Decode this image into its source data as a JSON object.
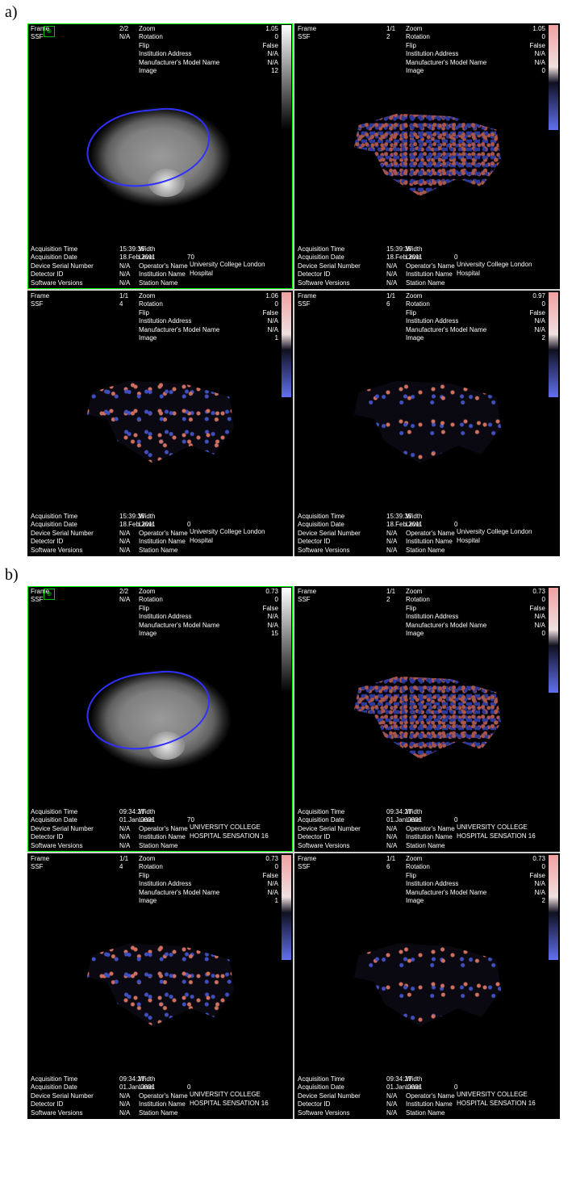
{
  "figures": {
    "a": {
      "label": "a)",
      "panels": [
        {
          "active": true,
          "image_type": "ct",
          "colorbar": "gray",
          "top": {
            "frame_lbl": "Frame",
            "frame": "2/2",
            "ssf_lbl": "SSF",
            "ssf": "N/A",
            "zoom_lbl": "Zoom",
            "zoom": "1.05",
            "rotation_lbl": "Rotation",
            "rotation": "0",
            "flip_lbl": "Flip",
            "flip": "False",
            "inst_addr_lbl": "Institution Address",
            "inst_addr": "N/A",
            "model_lbl": "Manufacturer's Model Name",
            "model": "N/A",
            "image_lbl": "Image",
            "image": "12"
          },
          "bot": {
            "acqtime_lbl": "Acquisition Time",
            "acqtime": "15:39:35",
            "acqdate_lbl": "Acquisition Date",
            "acqdate": "18.Feb.2011",
            "dsn_lbl": "Device Serial Number",
            "dsn": "N/A",
            "detid_lbl": "Detector ID",
            "detid": "N/A",
            "swv_lbl": "Software Versions",
            "swv": "N/A",
            "width_lbl": "Width",
            "level_lbl": "Level",
            "level": "70",
            "op_lbl": "Operator's Name",
            "instn_lbl": "Institution Name",
            "stn_lbl": "Station Name",
            "inst": "University College London Hospital"
          }
        },
        {
          "active": false,
          "image_type": "fine",
          "colorbar": "rb",
          "top": {
            "frame_lbl": "Frame",
            "frame": "1/1",
            "ssf_lbl": "SSF",
            "ssf": "2",
            "zoom_lbl": "Zoom",
            "zoom": "1.05",
            "rotation_lbl": "Rotation",
            "rotation": "0",
            "flip_lbl": "Flip",
            "flip": "False",
            "inst_addr_lbl": "Institution Address",
            "inst_addr": "N/A",
            "model_lbl": "Manufacturer's Model Name",
            "model": "N/A",
            "image_lbl": "Image",
            "image": "0"
          },
          "bot": {
            "acqtime_lbl": "Acquisition Time",
            "acqtime": "15:39:35",
            "acqdate_lbl": "Acquisition Date",
            "acqdate": "18.Feb.2011",
            "dsn_lbl": "Device Serial Number",
            "dsn": "N/A",
            "detid_lbl": "Detector ID",
            "detid": "N/A",
            "swv_lbl": "Software Versions",
            "swv": "N/A",
            "width_lbl": "Width",
            "level_lbl": "Level",
            "level": "0",
            "op_lbl": "Operator's Name",
            "instn_lbl": "Institution Name",
            "stn_lbl": "Station Name",
            "inst": "University College London Hospital"
          }
        },
        {
          "active": false,
          "image_type": "medium",
          "colorbar": "rb",
          "top": {
            "frame_lbl": "Frame",
            "frame": "1/1",
            "ssf_lbl": "SSF",
            "ssf": "4",
            "zoom_lbl": "Zoom",
            "zoom": "1.06",
            "rotation_lbl": "Rotation",
            "rotation": "0",
            "flip_lbl": "Flip",
            "flip": "False",
            "inst_addr_lbl": "Institution Address",
            "inst_addr": "N/A",
            "model_lbl": "Manufacturer's Model Name",
            "model": "N/A",
            "image_lbl": "Image",
            "image": "1"
          },
          "bot": {
            "acqtime_lbl": "Acquisition Time",
            "acqtime": "15:39:35",
            "acqdate_lbl": "Acquisition Date",
            "acqdate": "18.Feb.2011",
            "dsn_lbl": "Device Serial Number",
            "dsn": "N/A",
            "detid_lbl": "Detector ID",
            "detid": "N/A",
            "swv_lbl": "Software Versions",
            "swv": "N/A",
            "width_lbl": "Width",
            "level_lbl": "Level",
            "level": "0",
            "op_lbl": "Operator's Name",
            "instn_lbl": "Institution Name",
            "stn_lbl": "Station Name",
            "inst": "University College London Hospital"
          }
        },
        {
          "active": false,
          "image_type": "coarse",
          "colorbar": "rb",
          "top": {
            "frame_lbl": "Frame",
            "frame": "1/1",
            "ssf_lbl": "SSF",
            "ssf": "6",
            "zoom_lbl": "Zoom",
            "zoom": "0.97",
            "rotation_lbl": "Rotation",
            "rotation": "0",
            "flip_lbl": "Flip",
            "flip": "False",
            "inst_addr_lbl": "Institution Address",
            "inst_addr": "N/A",
            "model_lbl": "Manufacturer's Model Name",
            "model": "N/A",
            "image_lbl": "Image",
            "image": "2"
          },
          "bot": {
            "acqtime_lbl": "Acquisition Time",
            "acqtime": "15:39:35",
            "acqdate_lbl": "Acquisition Date",
            "acqdate": "18.Feb.2011",
            "dsn_lbl": "Device Serial Number",
            "dsn": "N/A",
            "detid_lbl": "Detector ID",
            "detid": "N/A",
            "swv_lbl": "Software Versions",
            "swv": "N/A",
            "width_lbl": "Width",
            "level_lbl": "Level",
            "level": "0",
            "op_lbl": "Operator's Name",
            "instn_lbl": "Institution Name",
            "stn_lbl": "Station Name",
            "inst": "University College London Hospital"
          }
        }
      ]
    },
    "b": {
      "label": "b)",
      "panels": [
        {
          "active": true,
          "image_type": "ct",
          "colorbar": "gray",
          "top": {
            "frame_lbl": "Frame",
            "frame": "2/2",
            "ssf_lbl": "SSF",
            "ssf": "N/A",
            "zoom_lbl": "Zoom",
            "zoom": "0.73",
            "rotation_lbl": "Rotation",
            "rotation": "0",
            "flip_lbl": "Flip",
            "flip": "False",
            "inst_addr_lbl": "Institution Address",
            "inst_addr": "N/A",
            "model_lbl": "Manufacturer's Model Name",
            "model": "N/A",
            "image_lbl": "Image",
            "image": "15"
          },
          "bot": {
            "acqtime_lbl": "Acquisition Time",
            "acqtime": "09:34:27",
            "acqdate_lbl": "Acquisition Date",
            "acqdate": "01.Jan.0001",
            "dsn_lbl": "Device Serial Number",
            "dsn": "N/A",
            "detid_lbl": "Detector ID",
            "detid": "N/A",
            "swv_lbl": "Software Versions",
            "swv": "N/A",
            "width_lbl": "Width",
            "level_lbl": "Level",
            "level": "70",
            "op_lbl": "Operator's Name",
            "instn_lbl": "Institution Name",
            "stn_lbl": "Station Name",
            "inst": "UNIVERSITY COLLEGE HOSPITAL SENSATION 16"
          }
        },
        {
          "active": false,
          "image_type": "fine",
          "colorbar": "rb",
          "top": {
            "frame_lbl": "Frame",
            "frame": "1/1",
            "ssf_lbl": "SSF",
            "ssf": "2",
            "zoom_lbl": "Zoom",
            "zoom": "0.73",
            "rotation_lbl": "Rotation",
            "rotation": "0",
            "flip_lbl": "Flip",
            "flip": "False",
            "inst_addr_lbl": "Institution Address",
            "inst_addr": "N/A",
            "model_lbl": "Manufacturer's Model Name",
            "model": "N/A",
            "image_lbl": "Image",
            "image": "0"
          },
          "bot": {
            "acqtime_lbl": "Acquisition Time",
            "acqtime": "09:34:27",
            "acqdate_lbl": "Acquisition Date",
            "acqdate": "01.Jan.0001",
            "dsn_lbl": "Device Serial Number",
            "dsn": "N/A",
            "detid_lbl": "Detector ID",
            "detid": "N/A",
            "swv_lbl": "Software Versions",
            "swv": "N/A",
            "width_lbl": "Width",
            "level_lbl": "Level",
            "level": "0",
            "op_lbl": "Operator's Name",
            "instn_lbl": "Institution Name",
            "stn_lbl": "Station Name",
            "inst": "UNIVERSITY COLLEGE HOSPITAL SENSATION 16"
          }
        },
        {
          "active": false,
          "image_type": "medium",
          "colorbar": "rb",
          "top": {
            "frame_lbl": "Frame",
            "frame": "1/1",
            "ssf_lbl": "SSF",
            "ssf": "4",
            "zoom_lbl": "Zoom",
            "zoom": "0.73",
            "rotation_lbl": "Rotation",
            "rotation": "0",
            "flip_lbl": "Flip",
            "flip": "False",
            "inst_addr_lbl": "Institution Address",
            "inst_addr": "N/A",
            "model_lbl": "Manufacturer's Model Name",
            "model": "N/A",
            "image_lbl": "Image",
            "image": "1"
          },
          "bot": {
            "acqtime_lbl": "Acquisition Time",
            "acqtime": "09:34:27",
            "acqdate_lbl": "Acquisition Date",
            "acqdate": "01.Jan.0001",
            "dsn_lbl": "Device Serial Number",
            "dsn": "N/A",
            "detid_lbl": "Detector ID",
            "detid": "N/A",
            "swv_lbl": "Software Versions",
            "swv": "N/A",
            "width_lbl": "Width",
            "level_lbl": "Level",
            "level": "0",
            "op_lbl": "Operator's Name",
            "instn_lbl": "Institution Name",
            "stn_lbl": "Station Name",
            "inst": "UNIVERSITY COLLEGE HOSPITAL SENSATION 16"
          }
        },
        {
          "active": false,
          "image_type": "coarse",
          "colorbar": "rb",
          "top": {
            "frame_lbl": "Frame",
            "frame": "1/1",
            "ssf_lbl": "SSF",
            "ssf": "6",
            "zoom_lbl": "Zoom",
            "zoom": "0.73",
            "rotation_lbl": "Rotation",
            "rotation": "0",
            "flip_lbl": "Flip",
            "flip": "False",
            "inst_addr_lbl": "Institution Address",
            "inst_addr": "N/A",
            "model_lbl": "Manufacturer's Model Name",
            "model": "N/A",
            "image_lbl": "Image",
            "image": "2"
          },
          "bot": {
            "acqtime_lbl": "Acquisition Time",
            "acqtime": "09:34:27",
            "acqdate_lbl": "Acquisition Date",
            "acqdate": "01.Jan.0001",
            "dsn_lbl": "Device Serial Number",
            "dsn": "N/A",
            "detid_lbl": "Detector ID",
            "detid": "N/A",
            "swv_lbl": "Software Versions",
            "swv": "N/A",
            "width_lbl": "Width",
            "level_lbl": "Level",
            "level": "0",
            "op_lbl": "Operator's Name",
            "instn_lbl": "Institution Name",
            "stn_lbl": "Station Name",
            "inst": "UNIVERSITY COLLEGE HOSPITAL SENSATION 16"
          }
        }
      ]
    }
  },
  "colors": {
    "panel_bg": "#000000",
    "text": "#ffffff",
    "active_border": "#00ff00",
    "roi_outline": "#3030ff",
    "page_bg": "#ffffff"
  }
}
